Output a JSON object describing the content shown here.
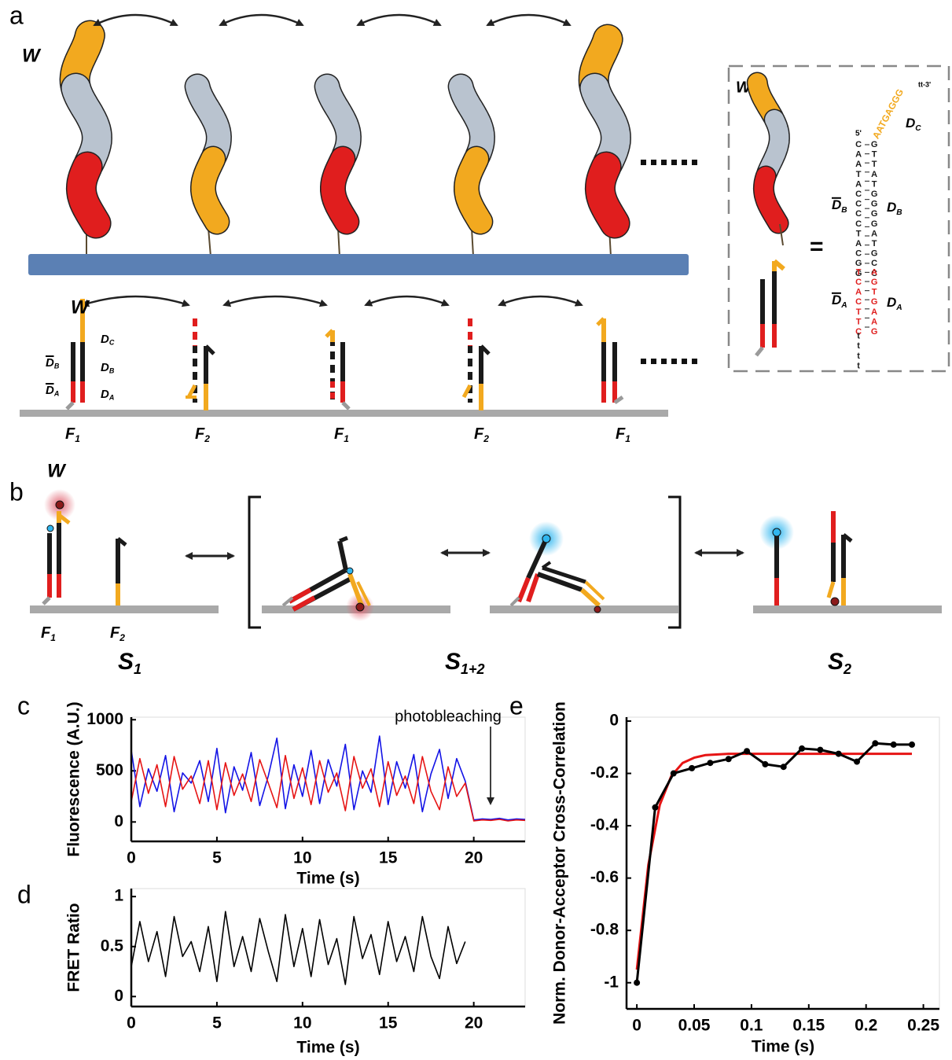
{
  "figure": {
    "panel_labels": [
      "a",
      "b",
      "c",
      "d",
      "e"
    ],
    "panel_a": {
      "w_top": "W",
      "w_inset": "W",
      "w_schematic": "W",
      "equals": "=",
      "schematic_labels": [
        {
          "base": "D",
          "sub": "C",
          "bar": false
        },
        {
          "base": "D",
          "sub": "B",
          "bar": false
        },
        {
          "base": "D",
          "sub": "A",
          "bar": false
        },
        {
          "base": "D",
          "sub": "B",
          "bar": true
        },
        {
          "base": "D",
          "sub": "A",
          "bar": true
        }
      ],
      "footholds": [
        {
          "base": "F",
          "sub": "1"
        },
        {
          "base": "F",
          "sub": "2"
        },
        {
          "base": "F",
          "sub": "1"
        },
        {
          "base": "F",
          "sub": "2"
        },
        {
          "base": "F",
          "sub": "1"
        }
      ],
      "inset_labels": [
        {
          "base": "D",
          "sub": "C",
          "bar": false
        },
        {
          "base": "D",
          "sub": "B",
          "bar": true
        },
        {
          "base": "D",
          "sub": "B",
          "bar": false
        },
        {
          "base": "D",
          "sub": "A",
          "bar": true
        },
        {
          "base": "D",
          "sub": "A",
          "bar": false
        }
      ],
      "sequence": {
        "five_prime": "5'",
        "left_black": "CAATACCCCTACGG",
        "left_red": "TCACTTC",
        "left_tail": "tttt",
        "right_black": "GTTATGGGGATGCC",
        "right_red": "AGTGAAG",
        "overhang": "AATGAGGG",
        "three_prime": "tt-3'"
      }
    },
    "panel_b": {
      "w": "W",
      "footholds": [
        {
          "base": "F",
          "sub": "1"
        },
        {
          "base": "F",
          "sub": "2"
        }
      ],
      "states": [
        {
          "base": "S",
          "sub": "1"
        },
        {
          "base": "S",
          "sub": "1+2"
        },
        {
          "base": "S",
          "sub": "2"
        }
      ]
    }
  },
  "chart_data": [
    {
      "type": "line",
      "ylabel": "Fluorescence (A.U.)",
      "xlabel": "Time (s)",
      "annotation": "photobleaching",
      "x": [
        0,
        0.5,
        1,
        1.5,
        2,
        2.5,
        3,
        3.5,
        4,
        4.5,
        5,
        5.5,
        6,
        6.5,
        7,
        7.5,
        8,
        8.5,
        9,
        9.5,
        10,
        10.5,
        11,
        11.5,
        12,
        12.5,
        13,
        13.5,
        14,
        14.5,
        15,
        15.5,
        16,
        16.5,
        17,
        17.5,
        18,
        18.5,
        19,
        19.5,
        20,
        20.5,
        21,
        21.5,
        22,
        22.5,
        23
      ],
      "series": [
        {
          "color": "#1414e6",
          "values": [
            700,
            150,
            520,
            300,
            650,
            100,
            480,
            380,
            600,
            200,
            720,
            90,
            540,
            310,
            680,
            160,
            450,
            820,
            130,
            560,
            250,
            700,
            180,
            610,
            350,
            760,
            120,
            500,
            290,
            840,
            170,
            590,
            330,
            660,
            100,
            470,
            710,
            230,
            620,
            400,
            20,
            30,
            25,
            35,
            20,
            30,
            25
          ]
        },
        {
          "color": "#e61414",
          "values": [
            200,
            620,
            280,
            560,
            150,
            640,
            320,
            450,
            180,
            600,
            120,
            580,
            260,
            470,
            200,
            610,
            380,
            140,
            650,
            230,
            530,
            170,
            600,
            290,
            480,
            110,
            640,
            330,
            520,
            150,
            590,
            260,
            450,
            180,
            640,
            300,
            120,
            540,
            250,
            380,
            10,
            20,
            15,
            25,
            10,
            20,
            15
          ]
        }
      ],
      "xlim": [
        0,
        23
      ],
      "ylim": [
        -190,
        1025
      ],
      "xticks": [
        0,
        5,
        10,
        15,
        20
      ],
      "yticks": [
        0,
        500,
        1000
      ]
    },
    {
      "type": "line",
      "ylabel": "FRET Ratio",
      "xlabel": "Time (s)",
      "x": [
        0,
        0.5,
        1,
        1.5,
        2,
        2.5,
        3,
        3.5,
        4,
        4.5,
        5,
        5.5,
        6,
        6.5,
        7,
        7.5,
        8,
        8.5,
        9,
        9.5,
        10,
        10.5,
        11,
        11.5,
        12,
        12.5,
        13,
        13.5,
        14,
        14.5,
        15,
        15.5,
        16,
        16.5,
        17,
        17.5,
        18,
        18.5,
        19,
        19.5
      ],
      "series": [
        {
          "color": "#000000",
          "values": [
            0.3,
            0.75,
            0.35,
            0.65,
            0.2,
            0.8,
            0.4,
            0.55,
            0.25,
            0.7,
            0.15,
            0.85,
            0.3,
            0.6,
            0.25,
            0.78,
            0.45,
            0.15,
            0.82,
            0.3,
            0.68,
            0.2,
            0.77,
            0.32,
            0.58,
            0.12,
            0.8,
            0.38,
            0.62,
            0.22,
            0.75,
            0.35,
            0.6,
            0.25,
            0.8,
            0.4,
            0.18,
            0.7,
            0.33,
            0.55
          ]
        }
      ],
      "xlim": [
        0,
        23
      ],
      "ylim": [
        -0.1,
        1.08
      ],
      "xticks": [
        0,
        5,
        10,
        15,
        20
      ],
      "yticks": [
        0,
        0.5,
        1
      ]
    },
    {
      "type": "line",
      "ylabel": "Norm. Donor-Acceptor Cross-Correlation",
      "xlabel": "Time (s)",
      "series": [
        {
          "color": "#e61414",
          "marker": false,
          "x": [
            0,
            0.01,
            0.02,
            0.03,
            0.04,
            0.05,
            0.06,
            0.08,
            0.1,
            0.15,
            0.2,
            0.24
          ],
          "values": [
            -0.95,
            -0.55,
            -0.32,
            -0.21,
            -0.16,
            -0.14,
            -0.13,
            -0.125,
            -0.125,
            -0.125,
            -0.125,
            -0.125
          ]
        },
        {
          "color": "#000000",
          "marker": true,
          "x": [
            0,
            0.016,
            0.032,
            0.048,
            0.064,
            0.08,
            0.096,
            0.112,
            0.128,
            0.144,
            0.16,
            0.176,
            0.192,
            0.208,
            0.224,
            0.24
          ],
          "values": [
            -1,
            -0.33,
            -0.2,
            -0.18,
            -0.16,
            -0.145,
            -0.115,
            -0.165,
            -0.175,
            -0.105,
            -0.11,
            -0.125,
            -0.155,
            -0.085,
            -0.09,
            -0.09
          ]
        }
      ],
      "xlim": [
        -0.009,
        0.264
      ],
      "ylim": [
        -1.1,
        0.015
      ],
      "xticks": [
        0,
        0.05,
        0.1,
        0.15,
        0.2,
        0.25
      ],
      "yticks": [
        0,
        -0.2,
        -0.4,
        -0.6,
        -0.8,
        -1
      ]
    }
  ]
}
